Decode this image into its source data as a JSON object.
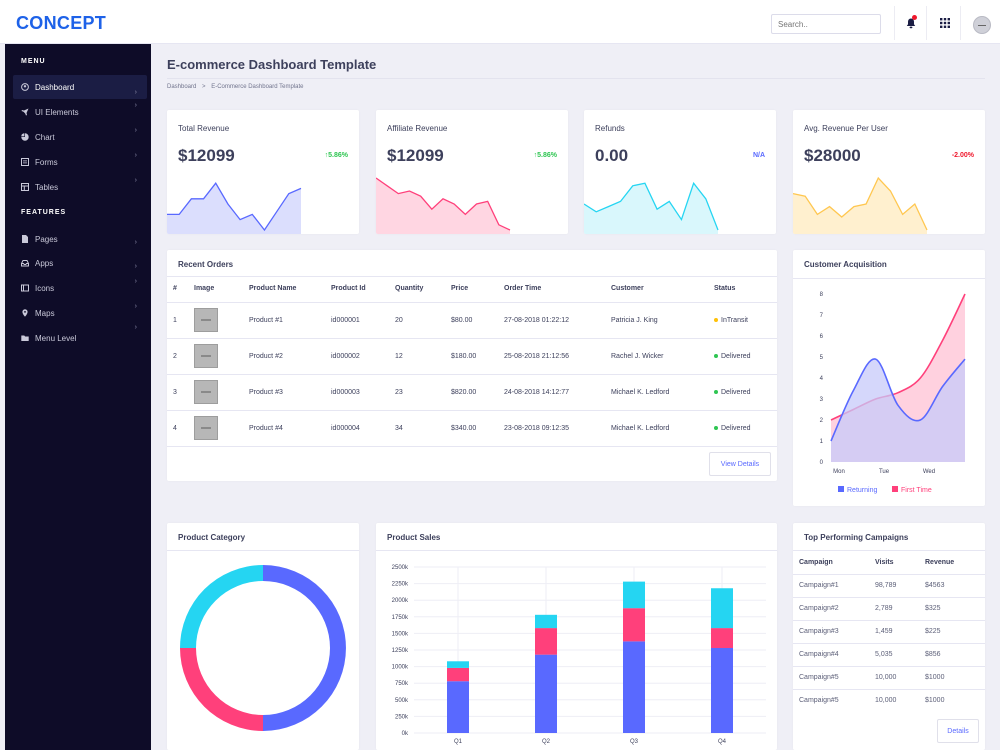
{
  "topbar": {
    "logo": "CONCEPT",
    "search_placeholder": "Search..",
    "icons": [
      "bell-icon",
      "apps-grid-icon",
      "user-avatar"
    ],
    "brand_color": "#1e62e8",
    "notification_color": "#ef172c"
  },
  "sidebar": {
    "menu_title": "MENU",
    "features_title": "FEATURES",
    "menu_items": [
      {
        "label": "Dashboard",
        "icon": "user-circle-icon",
        "active": true
      },
      {
        "label": "UI Elements",
        "icon": "rocket-icon"
      },
      {
        "label": "Chart",
        "icon": "pie-chart-icon"
      },
      {
        "label": "Forms",
        "icon": "form-icon"
      },
      {
        "label": "Tables",
        "icon": "table-icon"
      }
    ],
    "feature_items": [
      {
        "label": "Pages",
        "icon": "file-icon"
      },
      {
        "label": "Apps",
        "icon": "inbox-icon"
      },
      {
        "label": "Icons",
        "icon": "icons-icon"
      },
      {
        "label": "Maps",
        "icon": "map-pin-icon"
      },
      {
        "label": "Menu Level",
        "icon": "folder-icon"
      }
    ]
  },
  "page": {
    "title": "E-commerce Dashboard Template",
    "breadcrumb": [
      "Dashboard",
      "E-Commerce Dashboard Template"
    ],
    "breadcrumb_sep": ">"
  },
  "metrics": [
    {
      "title": "Total Revenue",
      "value": "$12099",
      "change": "5.86%",
      "direction": "up",
      "color": "#5969ff",
      "fill": "#dbdefd",
      "change_color": "#2ec551",
      "spark": [
        0.3,
        0.3,
        0.6,
        0.6,
        0.9,
        0.5,
        0.2,
        0.3,
        0.0,
        0.35,
        0.7,
        0.8
      ]
    },
    {
      "title": "Affiliate Revenue",
      "value": "$12099",
      "change": "5.86%",
      "direction": "up",
      "color": "#ff407b",
      "fill": "#ffd6e2",
      "change_color": "#2ec551",
      "spark": [
        1.0,
        0.85,
        0.7,
        0.75,
        0.65,
        0.4,
        0.6,
        0.5,
        0.3,
        0.5,
        0.55,
        0.1,
        0.0
      ]
    },
    {
      "title": "Refunds",
      "value": "0.00",
      "change": "N/A",
      "direction": "none",
      "color": "#25d5f2",
      "fill": "#d9f7fc",
      "change_color": "#5969ff",
      "spark": [
        0.5,
        0.35,
        0.45,
        0.55,
        0.85,
        0.9,
        0.4,
        0.55,
        0.2,
        0.9,
        0.6,
        0.0
      ]
    },
    {
      "title": "Avg. Revenue Per User",
      "value": "$28000",
      "change": "-2.00%",
      "direction": "down",
      "color": "#ffc750",
      "fill": "#fff0cf",
      "change_color": "#ef172c",
      "spark": [
        0.7,
        0.65,
        0.3,
        0.45,
        0.25,
        0.45,
        0.5,
        1.0,
        0.75,
        0.3,
        0.5,
        0.0
      ]
    }
  ],
  "orders": {
    "title": "Recent Orders",
    "headers": [
      "#",
      "Image",
      "Product Name",
      "Product Id",
      "Quantity",
      "Price",
      "Order Time",
      "Customer",
      "Status"
    ],
    "rows": [
      {
        "num": "1",
        "product": "Product #1",
        "id": "id000001",
        "qty": "20",
        "price": "$80.00",
        "time": "27-08-2018 01:22:12",
        "customer": "Patricia J. King",
        "status": "InTransit",
        "status_color": "#ffc108"
      },
      {
        "num": "2",
        "product": "Product #2",
        "id": "id000002",
        "qty": "12",
        "price": "$180.00",
        "time": "25-08-2018 21:12:56",
        "customer": "Rachel J. Wicker",
        "status": "Delivered",
        "status_color": "#2ec551"
      },
      {
        "num": "3",
        "product": "Product #3",
        "id": "id000003",
        "qty": "23",
        "price": "$820.00",
        "time": "24-08-2018 14:12:77",
        "customer": "Michael K. Ledford",
        "status": "Delivered",
        "status_color": "#2ec551"
      },
      {
        "num": "4",
        "product": "Product #4",
        "id": "id000004",
        "qty": "34",
        "price": "$340.00",
        "time": "23-08-2018 09:12:35",
        "customer": "Michael K. Ledford",
        "status": "Delivered",
        "status_color": "#2ec551"
      }
    ],
    "button": "View Details"
  },
  "customer_acquisition": {
    "title": "Customer Acquisition"
  },
  "product_category": {
    "title": "Product Category"
  },
  "product_sales": {
    "title": "Product Sales"
  },
  "campaigns": {
    "title": "Top Performing Campaigns",
    "headers": [
      "Campaign",
      "Visits",
      "Revenue"
    ],
    "rows": [
      [
        "Campaign#1",
        "98,789",
        "$4563"
      ],
      [
        "Campaign#2",
        "2,789",
        "$325"
      ],
      [
        "Campaign#3",
        "1,459",
        "$225"
      ],
      [
        "Campaign#4",
        "5,035",
        "$856"
      ],
      [
        "Campaign#5",
        "10,000",
        "$1000"
      ],
      [
        "Campaign#5",
        "10,000",
        "$1000"
      ]
    ],
    "button": "Details"
  },
  "chart_data": [
    {
      "type": "area",
      "categories": [
        "Mon",
        "Tue",
        "Wed"
      ],
      "ylim": [
        0,
        8
      ],
      "yticks": [
        "0",
        "1",
        "2",
        "3",
        "4",
        "5",
        "6",
        "7",
        "8"
      ],
      "series": [
        {
          "name": "Returning",
          "color": "#5969ff",
          "fill": "#c7caf9",
          "x": [
            0,
            0.5,
            1,
            1.5,
            2,
            2.5,
            3
          ],
          "values": [
            1.0,
            3.4,
            4.9,
            2.7,
            2.0,
            3.6,
            4.9
          ]
        },
        {
          "name": "First Time",
          "color": "#ff407b",
          "fill": "#ffc2d4",
          "x": [
            0,
            0.5,
            1,
            1.5,
            2,
            2.5,
            3
          ],
          "values": [
            2.0,
            2.5,
            3.0,
            3.3,
            4.0,
            5.8,
            8.0
          ]
        }
      ],
      "legend": "bottom"
    },
    {
      "type": "pie",
      "donut": true,
      "slices": [
        {
          "label": "Blue",
          "value": 50,
          "color": "#5969ff"
        },
        {
          "label": "Pink",
          "value": 25,
          "color": "#ff407b"
        },
        {
          "label": "Cyan",
          "value": 25,
          "color": "#25d5f2"
        }
      ]
    },
    {
      "type": "bar",
      "stacked": true,
      "categories": [
        "Q1",
        "Q2",
        "Q3",
        "Q4"
      ],
      "ylim": [
        0,
        2500
      ],
      "yticks": [
        "0k",
        "250k",
        "500k",
        "750k",
        "1000k",
        "1250k",
        "1500k",
        "1750k",
        "2000k",
        "2250k",
        "2500k"
      ],
      "series": [
        {
          "name": "Blue",
          "color": "#5969ff",
          "values": [
            780,
            1180,
            1380,
            1280
          ]
        },
        {
          "name": "Pink",
          "color": "#ff407b",
          "values": [
            200,
            400,
            500,
            300
          ]
        },
        {
          "name": "Cyan",
          "color": "#25d5f2",
          "values": [
            100,
            200,
            400,
            600
          ]
        }
      ],
      "grid": true
    }
  ]
}
